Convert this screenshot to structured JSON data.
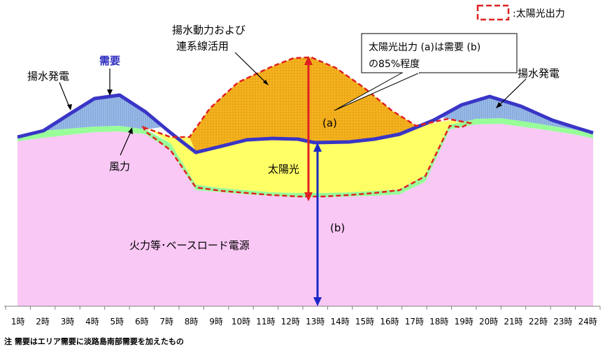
{
  "chart_data": {
    "type": "area",
    "x": [
      "1時",
      "2時",
      "3時",
      "4時",
      "5時",
      "6時",
      "7時",
      "8時",
      "9時",
      "10時",
      "11時",
      "12時",
      "13時",
      "14時",
      "15時",
      "16時",
      "17時",
      "18時",
      "19時",
      "20時",
      "21時",
      "22時",
      "23時",
      "24時"
    ],
    "series": [
      {
        "name": "火力等・ベースロード電源",
        "color": "#f9c8f5"
      },
      {
        "name": "風力",
        "color": "#99ff99"
      },
      {
        "name": "太陽光",
        "color": "#ffff66"
      },
      {
        "name": "揚水動力および連系線活用",
        "color": "#f4b11e"
      },
      {
        "name": "揚水発電",
        "color": "#8fb4e3"
      },
      {
        "name": "需要",
        "color": "#3a35c6"
      }
    ],
    "legend": {
      "label": ":太陽光出力",
      "color": "#e02020"
    },
    "annotations": {
      "demand": "需要",
      "pump_gen_left": "揚水発電",
      "pump_gen_right": "揚水発電",
      "pump_power_line1": "揚水動力および",
      "pump_power_line2": "連系線活用",
      "callout_line1": "太陽光出力 (a)は需要 (b)",
      "callout_line2": "の85%程度",
      "wind": "風力",
      "solar": "太陽光",
      "a_label": "(a)",
      "b_label": "(b)",
      "base": "火力等･ベースロード電源"
    }
  },
  "note": "注 需要はエリア需要に淡路島南部需要を加えたもの"
}
